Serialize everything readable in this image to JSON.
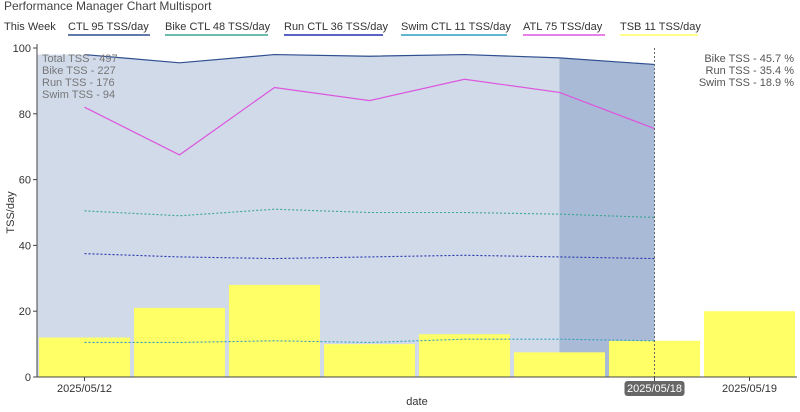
{
  "header": {
    "title": "Performance Manager Chart Multisport",
    "this_week": "This Week"
  },
  "legend": [
    {
      "name": "CTL",
      "value_text": "95 TSS/day",
      "color": "#2f4f8f"
    },
    {
      "name": "Bike CTL",
      "value_text": "48 TSS/day",
      "color": "#3aa58f"
    },
    {
      "name": "Run CTL",
      "value_text": "36 TSS/day",
      "color": "#2431b0"
    },
    {
      "name": "Swim CTL",
      "value_text": "11 TSS/day",
      "color": "#2e9fc0"
    },
    {
      "name": "ATL",
      "value_text": "75 TSS/day",
      "color": "#dd55dd"
    },
    {
      "name": "TSB",
      "value_text": "11 TSS/day",
      "color": "#ffff66"
    }
  ],
  "summary": [
    "Total TSS - 497",
    "Bike TSS - 227",
    "Run TSS - 176",
    "Swim TSS - 94"
  ],
  "percentages": [
    "Bike TSS - 45.7 %",
    "Run TSS - 35.4 %",
    "Swim TSS - 18.9 %"
  ],
  "colors": {
    "ctl_fill": "#d0dae9",
    "current_day_fill": "#a8bad6",
    "tsb_bar": "#ffff66",
    "badge_bg": "#666666"
  },
  "chart_data": {
    "type": "line",
    "x": [
      "2025/05/12",
      "2025/05/13",
      "2025/05/14",
      "2025/05/15",
      "2025/05/16",
      "2025/05/17",
      "2025/05/18",
      "2025/05/19"
    ],
    "tick_labels": [
      "2025/05/12",
      "2025/05/18",
      "2025/05/19"
    ],
    "highlighted_date": "2025/05/18",
    "xlabel": "date",
    "ylabel": "TSS/day",
    "ylim": [
      0,
      100
    ],
    "yticks": [
      0,
      20,
      40,
      60,
      80,
      100
    ],
    "series": [
      {
        "name": "CTL",
        "type": "area",
        "values": [
          98,
          95.5,
          98,
          97.5,
          98,
          97,
          95,
          null
        ]
      },
      {
        "name": "ATL",
        "type": "line",
        "values": [
          82,
          67.5,
          88,
          84,
          90.5,
          86.5,
          75.5,
          null
        ]
      },
      {
        "name": "Bike CTL",
        "type": "dashed",
        "values": [
          50.5,
          49,
          51,
          50,
          50,
          49.5,
          48.5,
          null
        ]
      },
      {
        "name": "Run CTL",
        "type": "dashed",
        "values": [
          37.5,
          36.5,
          36,
          36.5,
          37,
          36.5,
          36,
          null
        ]
      },
      {
        "name": "Swim CTL",
        "type": "dashed",
        "values": [
          10.5,
          10.5,
          11,
          10.5,
          11.5,
          11.5,
          11,
          null
        ]
      },
      {
        "name": "TSB",
        "type": "bar",
        "values": [
          12,
          21,
          28,
          10,
          13,
          7.5,
          11,
          20
        ]
      }
    ]
  }
}
